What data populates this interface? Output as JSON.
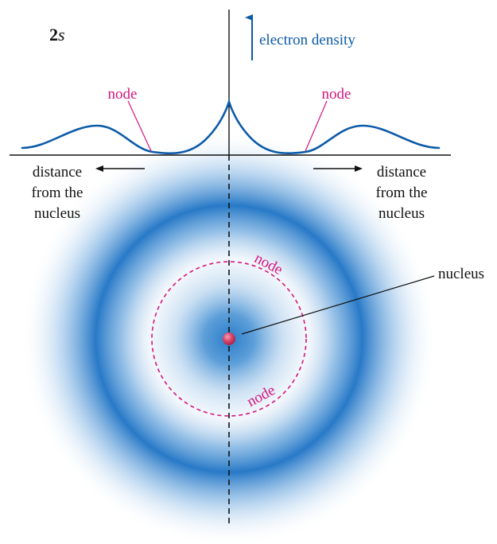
{
  "diagram": {
    "orbital_label_number": "2",
    "orbital_label_letter": "s",
    "y_axis_label": "electron density",
    "node_label": "node",
    "left_axis_label": [
      "distance",
      "from the",
      "nucleus"
    ],
    "right_axis_label": [
      "distance",
      "from the",
      "nucleus"
    ],
    "nucleus_label": "nucleus"
  },
  "colors": {
    "density_blue": "#1a74c4",
    "curve_blue": "#0b5aa8",
    "node_magenta": "#d4157f",
    "nucleus_red": "#c8324f",
    "axis_black": "#111111"
  }
}
